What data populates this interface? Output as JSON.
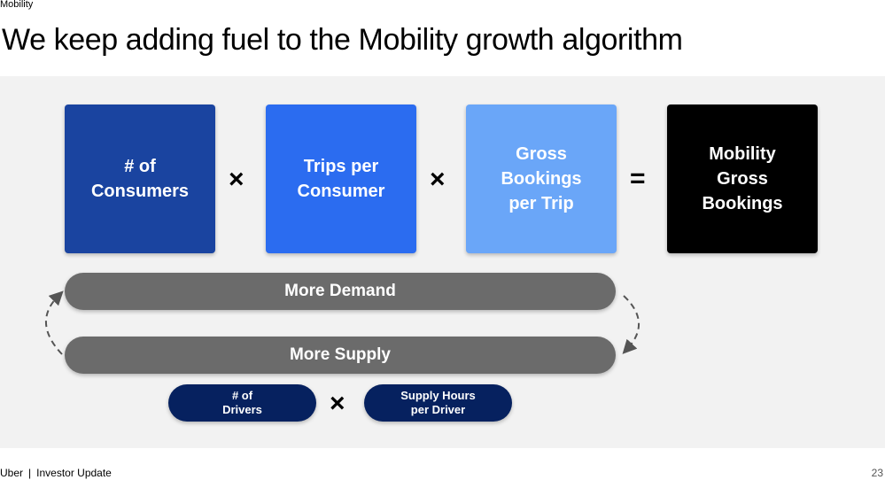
{
  "section_label": "Mobility",
  "title": "We keep adding fuel to the Mobility growth algorithm",
  "formula": {
    "boxes": [
      {
        "label": "# of\nConsumers",
        "color": "#1a44a0"
      },
      {
        "label": "Trips per\nConsumer",
        "color": "#2b6cf0"
      },
      {
        "label": "Gross\nBookings\nper Trip",
        "color": "#6aa6f8"
      },
      {
        "label": "Mobility\nGross\nBookings",
        "color": "#000000"
      }
    ],
    "operators": [
      "×",
      "×",
      "="
    ]
  },
  "flywheel": {
    "top_bar": "More Demand",
    "bottom_bar": "More Supply",
    "bar_color": "#6b6b6b"
  },
  "supply_formula": {
    "pills": [
      {
        "label": "# of\nDrivers"
      },
      {
        "label": "Supply Hours\nper Driver"
      }
    ],
    "operator": "×",
    "pill_color": "#06215f"
  },
  "footer": {
    "brand": "Uber",
    "separator": "|",
    "text": "Investor Update",
    "page_number": "23"
  }
}
